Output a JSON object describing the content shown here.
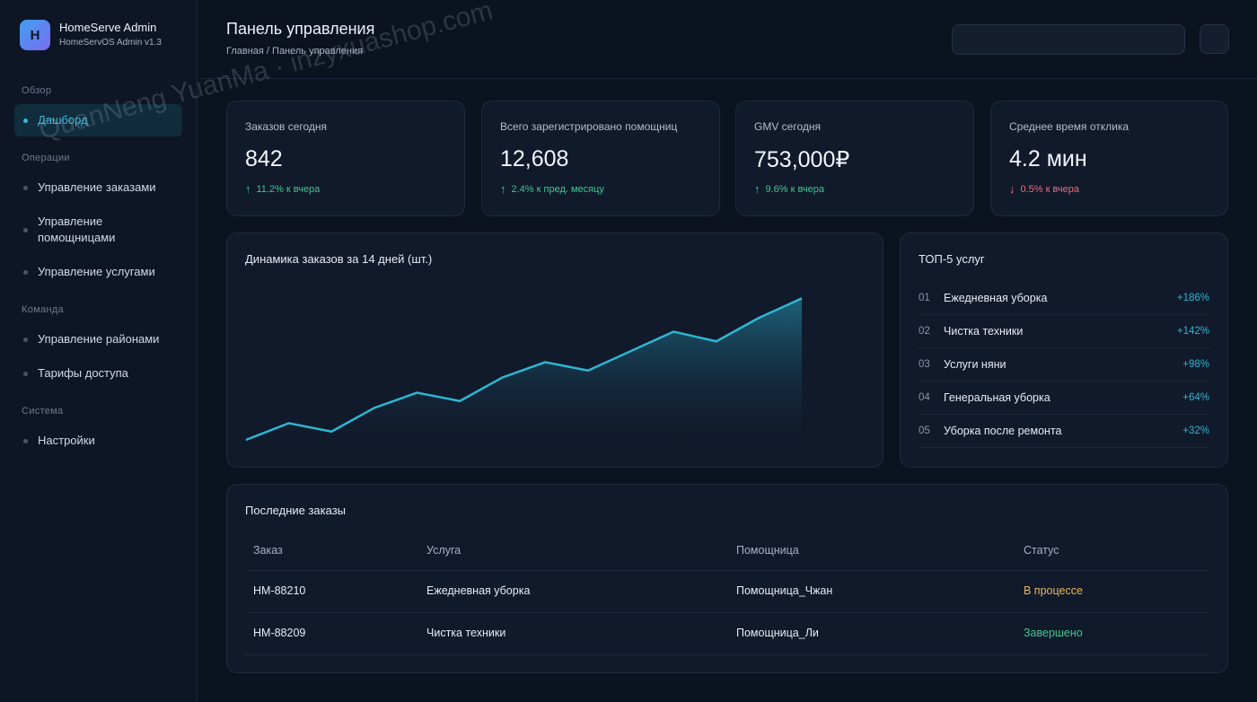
{
  "brand": {
    "logo_letter": "H",
    "title": "HomeServe Admin",
    "subtitle": "HomeServOS Admin v1.3"
  },
  "sidebar": {
    "sections": [
      {
        "title": "Обзор"
      },
      {
        "title": "Операции"
      },
      {
        "title": "Команда"
      },
      {
        "title": "Система"
      }
    ],
    "items": [
      {
        "label": "Дашборд",
        "active": true
      },
      {
        "label": "Управление заказами"
      },
      {
        "label": "Управление помощницами"
      },
      {
        "label": "Управление услугами"
      },
      {
        "label": "Управление районами"
      },
      {
        "label": "Тарифы доступа"
      },
      {
        "label": "Настройки"
      }
    ]
  },
  "header": {
    "title": "Панель управления",
    "breadcrumb": "Главная / Панель управления",
    "search_value": ""
  },
  "kpis": [
    {
      "label": "Заказов сегодня",
      "value": "842",
      "trend": "11.2% к вчера",
      "direction": "up"
    },
    {
      "label": "Всего зарегистрировано помощниц",
      "value": "12,608",
      "trend": "2.4% к пред. месяцу",
      "direction": "up"
    },
    {
      "label": "GMV сегодня",
      "value": "753,000₽",
      "trend": "9.6% к вчера",
      "direction": "up"
    },
    {
      "label": "Среднее время отклика",
      "value": "4.2 мин",
      "trend": "0.5% к вчера",
      "direction": "down"
    }
  ],
  "trend_arrows": {
    "up": "↑",
    "down": "↓"
  },
  "chart_data": {
    "type": "area",
    "title": "Динамика заказов за 14 дней (шт.)",
    "x": [
      1,
      2,
      3,
      4,
      5,
      6,
      7,
      8,
      9,
      10,
      11,
      12,
      13,
      14
    ],
    "values": [
      0,
      12,
      6,
      23,
      34,
      28,
      45,
      56,
      50,
      64,
      78,
      71,
      88,
      102
    ],
    "ylim": [
      0,
      110
    ],
    "grid": false,
    "legend": "none",
    "line_color": "#2fb6d2"
  },
  "top_services": {
    "title": "ТОП-5 услуг",
    "items": [
      {
        "rank": "01",
        "name": "Ежедневная уборка",
        "pct": "+186%"
      },
      {
        "rank": "02",
        "name": "Чистка техники",
        "pct": "+142%"
      },
      {
        "rank": "03",
        "name": "Услуги няни",
        "pct": "+98%"
      },
      {
        "rank": "04",
        "name": "Генеральная уборка",
        "pct": "+64%"
      },
      {
        "rank": "05",
        "name": "Уборка после ремонта",
        "pct": "+32%"
      }
    ]
  },
  "orders": {
    "title": "Последние заказы",
    "columns": [
      "Заказ",
      "Услуга",
      "Помощница",
      "Статус"
    ],
    "rows": [
      {
        "id": "HM-88210",
        "service": "Ежедневная уборка",
        "helper": "Помощница_Чжан",
        "status": "В процессе",
        "status_type": "progress"
      },
      {
        "id": "HM-88209",
        "service": "Чистка техники",
        "helper": "Помощница_Ли",
        "status": "Завершено",
        "status_type": "done"
      }
    ]
  },
  "watermark": "QuanNeng YuanMa · inzyxuashop.com",
  "colors": {
    "accent": "#3ab7d8",
    "up": "#3fc88f",
    "down": "#f06c7a",
    "in_progress": "#e8b85a"
  }
}
